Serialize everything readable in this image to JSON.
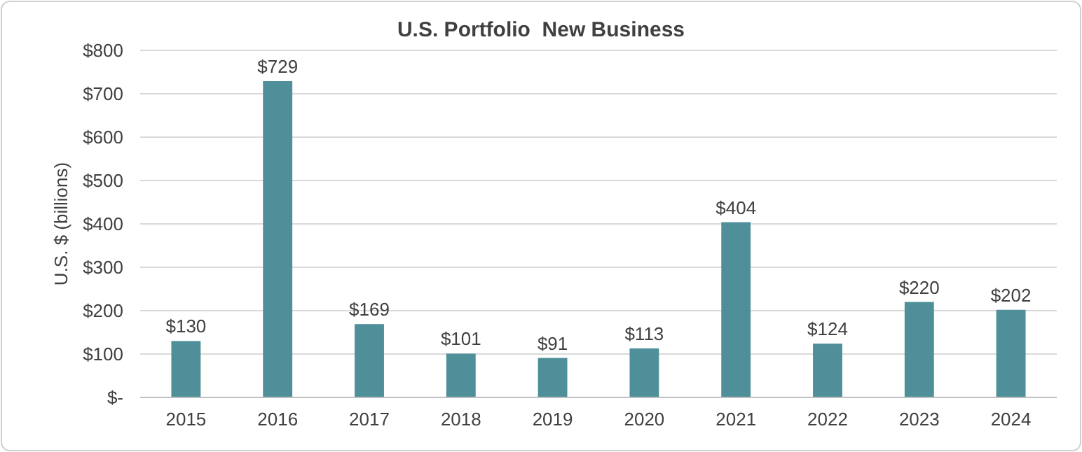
{
  "chart_data": {
    "type": "bar",
    "title": "U.S. Portfolio  New Business",
    "ylabel": "U.S. $ (billions)",
    "categories": [
      "2015",
      "2016",
      "2017",
      "2018",
      "2019",
      "2020",
      "2021",
      "2022",
      "2023",
      "2024"
    ],
    "values": [
      130,
      729,
      169,
      101,
      91,
      113,
      404,
      124,
      220,
      202
    ],
    "value_labels": [
      "$130",
      "$729",
      "$169",
      "$101",
      "$91",
      "$113",
      "$404",
      "$124",
      "$220",
      "$202"
    ],
    "color": "#4e8f99",
    "ylim": [
      0,
      800
    ],
    "yticks": [
      {
        "value": 0,
        "label": "$-"
      },
      {
        "value": 100,
        "label": "$100"
      },
      {
        "value": 200,
        "label": "$200"
      },
      {
        "value": 300,
        "label": "$300"
      },
      {
        "value": 400,
        "label": "$400"
      },
      {
        "value": 500,
        "label": "$500"
      },
      {
        "value": 600,
        "label": "$600"
      },
      {
        "value": 700,
        "label": "$700"
      },
      {
        "value": 800,
        "label": "$800"
      }
    ],
    "grid": "y"
  }
}
